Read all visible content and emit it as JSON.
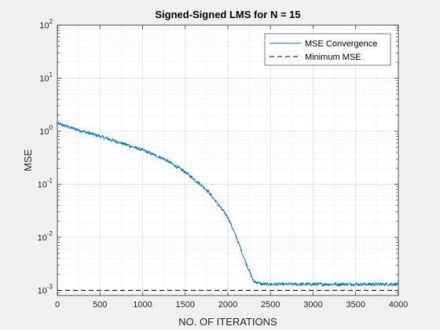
{
  "chart_data": {
    "type": "line",
    "title": "Signed-Signed LMS for N = 15",
    "xlabel": "NO. OF ITERATIONS",
    "ylabel": "MSE",
    "xlim": [
      0,
      4000
    ],
    "ylim": [
      0.0008,
      100
    ],
    "yscale": "log",
    "grid": true,
    "minor_grid": true,
    "legend_position": "top-right",
    "x_ticks": [
      0,
      500,
      1000,
      1500,
      2000,
      2500,
      3000,
      3500,
      4000
    ],
    "x_tick_labels": [
      "0",
      "500",
      "1000",
      "1500",
      "2000",
      "2500",
      "3000",
      "3500",
      "4000"
    ],
    "y_ticks": [
      0.001,
      0.01,
      0.1,
      1,
      10,
      100
    ],
    "y_tick_labels": [
      {
        "base": "10",
        "exp": "-3"
      },
      {
        "base": "10",
        "exp": "-2"
      },
      {
        "base": "10",
        "exp": "-1"
      },
      {
        "base": "10",
        "exp": "0"
      },
      {
        "base": "10",
        "exp": "1"
      },
      {
        "base": "10",
        "exp": "2"
      }
    ],
    "series": [
      {
        "name": "MSE Convergence",
        "color": "#0072BD",
        "style": "solid",
        "x": [
          0,
          250,
          500,
          750,
          1000,
          1250,
          1500,
          1750,
          2000,
          2100,
          2200,
          2300,
          2400,
          2500,
          3000,
          3500,
          4000
        ],
        "y": [
          1.4,
          1.05,
          0.8,
          0.6,
          0.44,
          0.3,
          0.17,
          0.08,
          0.024,
          0.01,
          0.0037,
          0.0015,
          0.0013,
          0.0013,
          0.0013,
          0.0013,
          0.0013
        ]
      },
      {
        "name": "Minimum MSE",
        "color": "#000000",
        "style": "dashed",
        "x": [
          0,
          4000
        ],
        "y": [
          0.001,
          0.001
        ]
      }
    ]
  }
}
